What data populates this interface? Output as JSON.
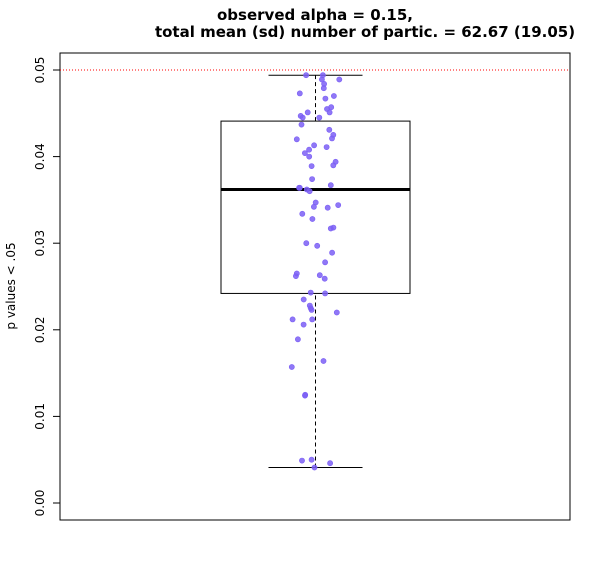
{
  "chart_data": {
    "type": "boxplot",
    "title_lines": [
      "observed alpha = 0.15,",
      "total mean (sd) number of partic. = 62.67 (19.05)"
    ],
    "xlabel": "",
    "ylabel": "p values < .05",
    "ylim": [
      0,
      0.05
    ],
    "yticks": [
      0.0,
      0.01,
      0.02,
      0.03,
      0.04,
      0.05
    ],
    "ytick_labels": [
      "0.00",
      "0.01",
      "0.02",
      "0.03",
      "0.04",
      "0.05"
    ],
    "reference_line": {
      "y": 0.05,
      "color": "#ff0000",
      "style": "dotted"
    },
    "box": {
      "whisker_low": 0.0041,
      "q1": 0.0242,
      "median": 0.0362,
      "q3": 0.0441,
      "whisker_high": 0.0494
    },
    "point_color": "#7b5ff5",
    "points": [
      0.0494,
      0.0494,
      0.0489,
      0.0489,
      0.0484,
      0.0479,
      0.0473,
      0.047,
      0.0467,
      0.0457,
      0.0455,
      0.0451,
      0.0451,
      0.0447,
      0.0445,
      0.0445,
      0.0437,
      0.0431,
      0.0425,
      0.0421,
      0.042,
      0.0413,
      0.0411,
      0.0408,
      0.0404,
      0.04,
      0.0394,
      0.039,
      0.0389,
      0.0374,
      0.0367,
      0.0364,
      0.0364,
      0.0362,
      0.036,
      0.0347,
      0.0344,
      0.0342,
      0.0341,
      0.0334,
      0.0328,
      0.0318,
      0.0317,
      0.03,
      0.0297,
      0.0289,
      0.0278,
      0.0265,
      0.0263,
      0.0262,
      0.0259,
      0.0243,
      0.0242,
      0.0235,
      0.0228,
      0.0225,
      0.0223,
      0.022,
      0.0212,
      0.0212,
      0.0206,
      0.0189,
      0.0164,
      0.0157,
      0.0125,
      0.0124,
      0.005,
      0.0049,
      0.0046,
      0.0041
    ]
  }
}
